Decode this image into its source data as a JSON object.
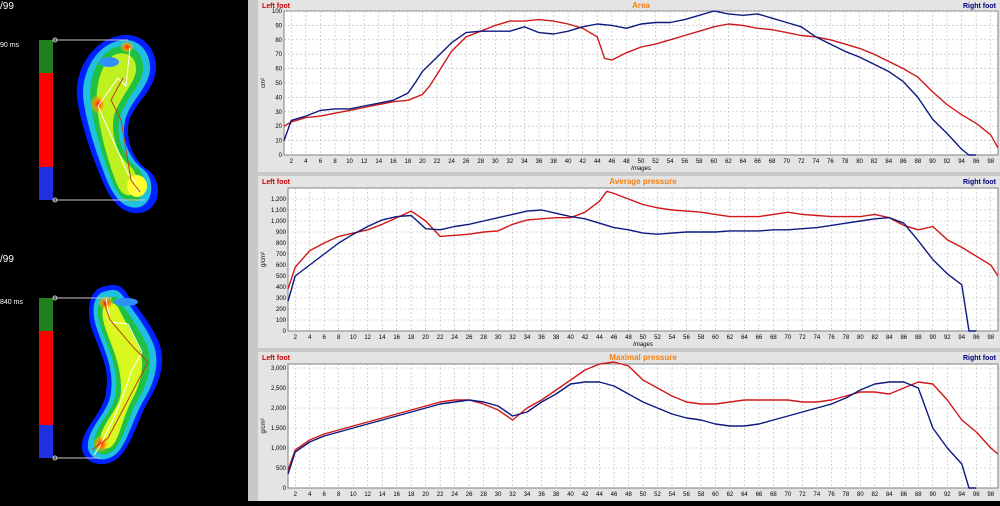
{
  "left": {
    "foot1": {
      "partial_date": "/99",
      "duration": "90 ms"
    },
    "foot2": {
      "partial_date": "/99",
      "duration": "840 ms"
    },
    "phase_colors": [
      "#208020",
      "#ff0000",
      "#2030e0"
    ]
  },
  "legend": {
    "left": "Left foot",
    "right": "Right foot"
  },
  "colors": {
    "left_series": "#d01818",
    "right_series": "#0c1a80",
    "title": "#f08010",
    "legend_left": "#cc0000",
    "legend_right": "#000080"
  },
  "chart_data": [
    {
      "type": "line",
      "title": "Area",
      "ylabel": "cm²",
      "xlabel": "Images",
      "ylim": [
        0,
        100
      ],
      "yticks": [
        0,
        10,
        20,
        30,
        40,
        50,
        60,
        70,
        80,
        90,
        100
      ],
      "xlim": [
        1,
        99
      ],
      "xticks": [
        2,
        4,
        6,
        8,
        10,
        12,
        14,
        16,
        18,
        20,
        22,
        24,
        26,
        28,
        30,
        32,
        34,
        36,
        38,
        40,
        42,
        44,
        46,
        48,
        50,
        52,
        54,
        56,
        58,
        60,
        62,
        64,
        66,
        68,
        70,
        72,
        74,
        76,
        78,
        80,
        82,
        84,
        86,
        88,
        90,
        92,
        94,
        96,
        98
      ],
      "series": [
        {
          "name": "Left foot",
          "x": [
            1,
            2,
            4,
            6,
            8,
            10,
            12,
            14,
            16,
            18,
            20,
            21,
            22,
            24,
            26,
            28,
            30,
            32,
            34,
            36,
            38,
            40,
            42,
            44,
            45,
            46,
            48,
            50,
            52,
            54,
            56,
            58,
            60,
            62,
            64,
            66,
            68,
            70,
            72,
            74,
            76,
            78,
            80,
            82,
            84,
            86,
            88,
            90,
            92,
            94,
            96,
            98,
            99
          ],
          "y": [
            20,
            23,
            26,
            27,
            29,
            31,
            33,
            35,
            37,
            38,
            42,
            48,
            56,
            72,
            82,
            86,
            90,
            93,
            93,
            94,
            93,
            91,
            88,
            82,
            67,
            66,
            71,
            75,
            77,
            80,
            83,
            86,
            89,
            91,
            90,
            88,
            87,
            85,
            83,
            82,
            80,
            77,
            74,
            70,
            65,
            60,
            54,
            44,
            35,
            28,
            22,
            14,
            5
          ]
        },
        {
          "name": "Right foot",
          "x": [
            1,
            2,
            4,
            6,
            8,
            10,
            12,
            14,
            16,
            18,
            19,
            20,
            22,
            24,
            26,
            28,
            30,
            32,
            34,
            36,
            38,
            40,
            42,
            44,
            46,
            48,
            50,
            52,
            54,
            56,
            58,
            60,
            62,
            64,
            66,
            68,
            70,
            72,
            74,
            76,
            78,
            80,
            82,
            84,
            86,
            88,
            90,
            92,
            94,
            95,
            96
          ],
          "y": [
            10,
            24,
            27,
            31,
            32,
            32,
            34,
            36,
            38,
            43,
            50,
            58,
            68,
            78,
            85,
            86,
            86,
            86,
            89,
            85,
            84,
            86,
            89,
            91,
            90,
            88,
            91,
            92,
            92,
            94,
            97,
            100,
            98,
            97,
            98,
            95,
            92,
            89,
            82,
            77,
            72,
            68,
            63,
            58,
            51,
            40,
            25,
            15,
            4,
            0,
            0
          ]
        }
      ]
    },
    {
      "type": "line",
      "title": "Average pressure",
      "ylabel": "g/cm²",
      "xlabel": "Images",
      "ylim": [
        0,
        1300
      ],
      "yticks": [
        0,
        100,
        200,
        300,
        400,
        500,
        600,
        700,
        800,
        900,
        1000,
        1100,
        1200
      ],
      "ytick_labels": [
        "0",
        "100",
        "200",
        "300",
        "400",
        "500",
        "600",
        "700",
        "800",
        "900",
        "1,000",
        "1,100",
        "1,200"
      ],
      "xlim": [
        1,
        99
      ],
      "xticks": [
        2,
        4,
        6,
        8,
        10,
        12,
        14,
        16,
        18,
        20,
        22,
        24,
        26,
        28,
        30,
        32,
        34,
        36,
        38,
        40,
        42,
        44,
        46,
        48,
        50,
        52,
        54,
        56,
        58,
        60,
        62,
        64,
        66,
        68,
        70,
        72,
        74,
        76,
        78,
        80,
        82,
        84,
        86,
        88,
        90,
        92,
        94,
        96,
        98
      ],
      "series": [
        {
          "name": "Left foot",
          "x": [
            1,
            2,
            4,
            6,
            8,
            10,
            12,
            14,
            16,
            18,
            20,
            22,
            24,
            26,
            28,
            30,
            32,
            34,
            36,
            38,
            40,
            42,
            44,
            45,
            46,
            48,
            50,
            52,
            54,
            56,
            58,
            60,
            62,
            64,
            66,
            68,
            70,
            72,
            74,
            76,
            78,
            80,
            82,
            84,
            86,
            88,
            90,
            92,
            94,
            96,
            98,
            99
          ],
          "y": [
            380,
            580,
            730,
            800,
            860,
            890,
            920,
            970,
            1030,
            1090,
            1000,
            860,
            870,
            880,
            900,
            910,
            970,
            1010,
            1020,
            1030,
            1030,
            1080,
            1180,
            1270,
            1250,
            1200,
            1150,
            1120,
            1100,
            1090,
            1080,
            1060,
            1040,
            1040,
            1040,
            1060,
            1080,
            1060,
            1050,
            1040,
            1040,
            1040,
            1060,
            1030,
            960,
            920,
            950,
            830,
            760,
            680,
            600,
            500
          ]
        },
        {
          "name": "Right foot",
          "x": [
            1,
            2,
            4,
            6,
            8,
            10,
            12,
            14,
            16,
            18,
            20,
            22,
            24,
            26,
            28,
            30,
            32,
            34,
            36,
            38,
            40,
            42,
            44,
            46,
            48,
            50,
            52,
            54,
            56,
            58,
            60,
            62,
            64,
            66,
            68,
            70,
            72,
            74,
            76,
            78,
            80,
            82,
            84,
            86,
            88,
            90,
            92,
            94,
            95,
            96
          ],
          "y": [
            270,
            500,
            600,
            700,
            800,
            880,
            950,
            1010,
            1040,
            1050,
            930,
            920,
            950,
            970,
            1000,
            1030,
            1060,
            1090,
            1100,
            1070,
            1040,
            1020,
            980,
            940,
            920,
            890,
            880,
            890,
            900,
            900,
            900,
            910,
            910,
            910,
            920,
            920,
            930,
            940,
            960,
            980,
            1000,
            1020,
            1030,
            980,
            820,
            650,
            520,
            420,
            0,
            0
          ]
        }
      ]
    },
    {
      "type": "line",
      "title": "Maximal pressure",
      "ylabel": "g/cm²",
      "xlabel": "",
      "ylim": [
        0,
        3100
      ],
      "yticks": [
        0,
        500,
        1000,
        1500,
        2000,
        2500,
        3000
      ],
      "ytick_labels": [
        "0",
        "500",
        "1,000",
        "1,500",
        "2,000",
        "2,500",
        "3,000"
      ],
      "xlim": [
        1,
        99
      ],
      "xticks": [
        2,
        4,
        6,
        8,
        10,
        12,
        14,
        16,
        18,
        20,
        22,
        24,
        26,
        28,
        30,
        32,
        34,
        36,
        38,
        40,
        42,
        44,
        46,
        48,
        50,
        52,
        54,
        56,
        58,
        60,
        62,
        64,
        66,
        68,
        70,
        72,
        74,
        76,
        78,
        80,
        82,
        84,
        86,
        88,
        90,
        92,
        94,
        96,
        98
      ],
      "series": [
        {
          "name": "Left foot",
          "x": [
            1,
            2,
            4,
            6,
            8,
            10,
            12,
            14,
            16,
            18,
            20,
            22,
            24,
            26,
            28,
            30,
            32,
            34,
            36,
            38,
            40,
            42,
            44,
            46,
            48,
            50,
            52,
            54,
            56,
            58,
            60,
            62,
            64,
            66,
            68,
            70,
            72,
            74,
            76,
            78,
            80,
            82,
            84,
            86,
            88,
            90,
            92,
            94,
            96,
            98,
            99
          ],
          "y": [
            450,
            950,
            1200,
            1350,
            1450,
            1550,
            1650,
            1750,
            1850,
            1950,
            2050,
            2150,
            2200,
            2200,
            2100,
            1950,
            1700,
            2000,
            2200,
            2450,
            2700,
            2950,
            3100,
            3150,
            3050,
            2700,
            2500,
            2300,
            2150,
            2100,
            2100,
            2150,
            2200,
            2200,
            2200,
            2200,
            2150,
            2150,
            2200,
            2300,
            2400,
            2400,
            2350,
            2500,
            2650,
            2600,
            2200,
            1700,
            1400,
            1000,
            850
          ]
        },
        {
          "name": "Right foot",
          "x": [
            1,
            2,
            4,
            6,
            8,
            10,
            12,
            14,
            16,
            18,
            20,
            22,
            24,
            26,
            28,
            30,
            32,
            34,
            36,
            38,
            40,
            42,
            44,
            46,
            48,
            50,
            52,
            54,
            56,
            58,
            60,
            62,
            64,
            66,
            68,
            70,
            72,
            74,
            76,
            78,
            80,
            82,
            84,
            86,
            88,
            89,
            90,
            92,
            94,
            95,
            96
          ],
          "y": [
            350,
            900,
            1150,
            1300,
            1400,
            1500,
            1600,
            1700,
            1800,
            1900,
            2000,
            2100,
            2150,
            2200,
            2150,
            2050,
            1800,
            1900,
            2150,
            2350,
            2600,
            2650,
            2650,
            2550,
            2350,
            2150,
            2000,
            1850,
            1750,
            1700,
            1600,
            1550,
            1550,
            1600,
            1700,
            1800,
            1900,
            2000,
            2100,
            2250,
            2450,
            2600,
            2650,
            2650,
            2500,
            2000,
            1500,
            1000,
            600,
            0,
            0
          ]
        }
      ]
    }
  ]
}
